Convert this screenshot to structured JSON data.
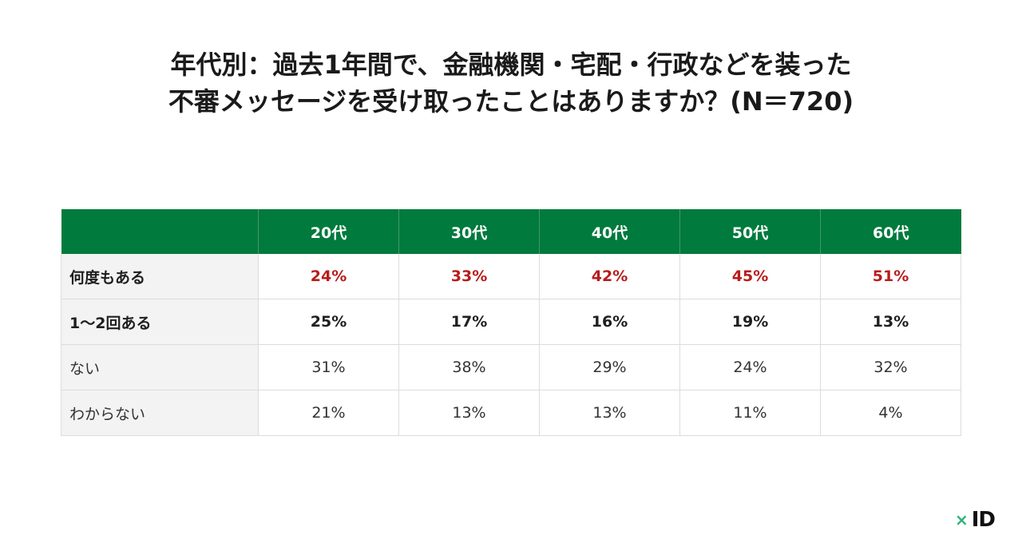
{
  "chart_data": {
    "type": "table",
    "title_lines": [
      "年代別：過去1年間で、金融機関・宅配・行政などを装った",
      "不審メッセージを受け取ったことはありますか？(N＝720)"
    ],
    "columns": [
      "20代",
      "30代",
      "40代",
      "50代",
      "60代"
    ],
    "rows": [
      {
        "label": "何度もある",
        "values": [
          "24%",
          "33%",
          "42%",
          "45%",
          "51%"
        ],
        "style": "highlight"
      },
      {
        "label": "1〜2回ある",
        "values": [
          "25%",
          "17%",
          "16%",
          "19%",
          "13%"
        ],
        "style": "bold"
      },
      {
        "label": "ない",
        "values": [
          "31%",
          "38%",
          "29%",
          "24%",
          "32%"
        ],
        "style": "normal"
      },
      {
        "label": "わからない",
        "values": [
          "21%",
          "13%",
          "13%",
          "11%",
          "4%"
        ],
        "style": "normal"
      }
    ]
  },
  "colors": {
    "header_bg": "#007a3d",
    "highlight_text": "#b71c1c",
    "row_label_bg": "#f3f3f3"
  },
  "logo": {
    "mark": "×",
    "text": "ID",
    "icon": "x-id-logo-icon"
  }
}
